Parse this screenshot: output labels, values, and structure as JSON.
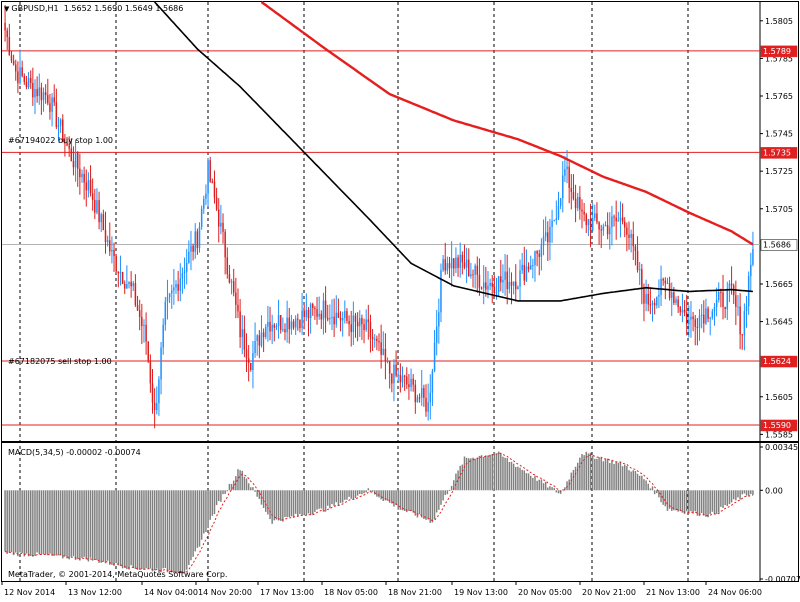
{
  "header": {
    "symbol_label": "GBPUSD,H1",
    "ohlc_label": "1.5652 1.5690 1.5649 1.5686"
  },
  "copyright": "MetaTrader, © 2001-2014, MetaQuotes Software Corp.",
  "orders": {
    "buy_stop_label": "#67194022 buy stop 1.00",
    "sell_stop_label": "#67182075 sell stop 1.00"
  },
  "price_axis": {
    "ticks": [
      "1.5805",
      "1.5785",
      "1.5765",
      "1.5745",
      "1.5725",
      "1.5705",
      "1.5665",
      "1.5645",
      "1.5605",
      "1.5585"
    ],
    "tags": [
      {
        "value": "1.5789",
        "kind": "level"
      },
      {
        "value": "1.5735",
        "kind": "level"
      },
      {
        "value": "1.5686",
        "kind": "current"
      },
      {
        "value": "1.5624",
        "kind": "level"
      },
      {
        "value": "1.5590",
        "kind": "level"
      }
    ]
  },
  "time_axis": {
    "labels": [
      "12 Nov 2014",
      "13 Nov 12:00",
      "14 Nov 04:00",
      "14 Nov 20:00",
      "17 Nov 13:00",
      "18 Nov 05:00",
      "18 Nov 21:00",
      "19 Nov 13:00",
      "20 Nov 05:00",
      "20 Nov 21:00",
      "21 Nov 13:00",
      "24 Nov 06:00"
    ]
  },
  "macd": {
    "label": "MACD(5,34,5) -0.00002 -0.00074",
    "ticks": [
      "0.00345",
      "0.00",
      "-0.00707"
    ]
  },
  "colors": {
    "bull": "#1e90ff",
    "bear": "#dc1e1e",
    "ma_fast": "#e61e1e",
    "ma_slow": "#000000",
    "level_line": "#e02020",
    "tag_bg": "#e02020",
    "current_bg": "#ffffff",
    "histogram": "#808080",
    "signal": "#e02020"
  },
  "chart_data": {
    "type": "candlestick",
    "symbol": "GBPUSD",
    "timeframe": "H1",
    "ylim": [
      1.5582,
      1.5815
    ],
    "horizontal_levels": [
      1.5789,
      1.5735,
      1.5624,
      1.559
    ],
    "current_price": 1.5686,
    "close_anchors": [
      [
        0,
        1.58
      ],
      [
        5,
        1.5778
      ],
      [
        12,
        1.577
      ],
      [
        20,
        1.5765
      ],
      [
        30,
        1.5735
      ],
      [
        40,
        1.5715
      ],
      [
        50,
        1.568
      ],
      [
        60,
        1.566
      ],
      [
        66,
        1.5635
      ],
      [
        70,
        1.5595
      ],
      [
        75,
        1.565
      ],
      [
        82,
        1.567
      ],
      [
        90,
        1.569
      ],
      [
        95,
        1.5725
      ],
      [
        100,
        1.57
      ],
      [
        105,
        1.567
      ],
      [
        110,
        1.564
      ],
      [
        115,
        1.5625
      ],
      [
        122,
        1.5645
      ],
      [
        130,
        1.5645
      ],
      [
        140,
        1.5648
      ],
      [
        150,
        1.5652
      ],
      [
        160,
        1.5645
      ],
      [
        170,
        1.564
      ],
      [
        180,
        1.5618
      ],
      [
        190,
        1.561
      ],
      [
        198,
        1.56
      ],
      [
        205,
        1.5678
      ],
      [
        215,
        1.5675
      ],
      [
        225,
        1.5665
      ],
      [
        240,
        1.5668
      ],
      [
        255,
        1.569
      ],
      [
        262,
        1.5725
      ],
      [
        270,
        1.57
      ],
      [
        280,
        1.5695
      ],
      [
        290,
        1.57
      ],
      [
        300,
        1.5655
      ],
      [
        310,
        1.5665
      ],
      [
        320,
        1.5645
      ],
      [
        330,
        1.5652
      ],
      [
        340,
        1.566
      ],
      [
        345,
        1.564
      ],
      [
        350,
        1.5686
      ]
    ],
    "ma_fast_anchors": [
      [
        120,
        1.5815
      ],
      [
        150,
        1.579
      ],
      [
        180,
        1.5766
      ],
      [
        210,
        1.5752
      ],
      [
        240,
        1.5742
      ],
      [
        260,
        1.5733
      ],
      [
        280,
        1.5722
      ],
      [
        300,
        1.5714
      ],
      [
        320,
        1.5703
      ],
      [
        340,
        1.5693
      ],
      [
        350,
        1.5686
      ]
    ],
    "ma_slow_anchors": [
      [
        70,
        1.5815
      ],
      [
        90,
        1.579
      ],
      [
        110,
        1.577
      ],
      [
        140,
        1.5735
      ],
      [
        170,
        1.57
      ],
      [
        190,
        1.5676
      ],
      [
        210,
        1.5664
      ],
      [
        240,
        1.5656
      ],
      [
        260,
        1.5656
      ],
      [
        280,
        1.566
      ],
      [
        300,
        1.5663
      ],
      [
        320,
        1.5661
      ],
      [
        340,
        1.5662
      ],
      [
        350,
        1.5661
      ]
    ],
    "macd_anchors": [
      [
        0,
        -0.005
      ],
      [
        20,
        -0.0052
      ],
      [
        40,
        -0.0055
      ],
      [
        60,
        -0.0062
      ],
      [
        85,
        -0.0065
      ],
      [
        100,
        -0.001
      ],
      [
        110,
        0.0018
      ],
      [
        125,
        -0.0025
      ],
      [
        150,
        -0.0015
      ],
      [
        170,
        0.0
      ],
      [
        185,
        -0.0015
      ],
      [
        200,
        -0.0025
      ],
      [
        215,
        0.0025
      ],
      [
        230,
        0.003
      ],
      [
        250,
        0.0008
      ],
      [
        260,
        -0.0003
      ],
      [
        270,
        0.003
      ],
      [
        290,
        0.002
      ],
      [
        300,
        0.0008
      ],
      [
        310,
        -0.0015
      ],
      [
        330,
        -0.002
      ],
      [
        345,
        -0.0005
      ],
      [
        350,
        -0.0002
      ]
    ],
    "bar_count": 351
  }
}
